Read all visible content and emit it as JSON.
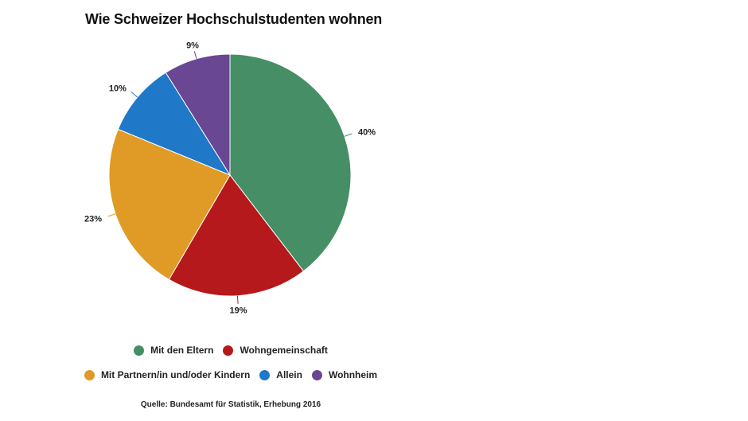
{
  "chart_data": {
    "type": "pie",
    "title": "Wie Schweizer Hochschulstudenten wohnen",
    "slices": [
      {
        "label": "Mit den Eltern",
        "value": 40,
        "display": "40%",
        "color": "#468f66"
      },
      {
        "label": "Wohngemeinschaft",
        "value": 19,
        "display": "19%",
        "color": "#b5191c"
      },
      {
        "label": "Mit Partnern/in und/oder Kindern",
        "value": 23,
        "display": "23%",
        "color": "#df9b25"
      },
      {
        "label": "Allein",
        "value": 10,
        "display": "10%",
        "color": "#1f78c8"
      },
      {
        "label": "Wohnheim",
        "value": 9,
        "display": "9%",
        "color": "#6a4792"
      }
    ],
    "legend_placement": "bottom",
    "source": "Quelle: Bundesamt für Statistik, Erhebung 2016"
  }
}
